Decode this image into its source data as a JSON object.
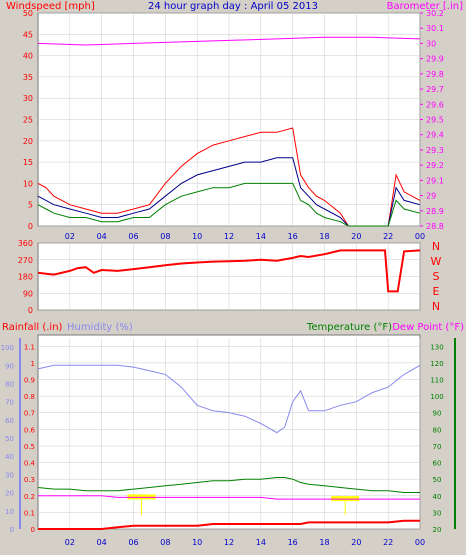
{
  "title": "24 hour graph day : April 05 2013",
  "colors": {
    "background": "#d4d0c8",
    "plot_bg": "#ffffff",
    "gust": "#ff0000",
    "avg_speed": "#00008b",
    "wind_speed": "#008000",
    "barometer": "#ff00ff",
    "direction": "#ff0000",
    "rainfall": "#ff0000",
    "humidity": "#8888ee",
    "temperature": "#008000",
    "dewpoint": "#ff00ff",
    "marker": "#ffff00",
    "title": "#0000cc"
  },
  "x_ticks": [
    "02",
    "04",
    "06",
    "08",
    "10",
    "12",
    "14",
    "16",
    "18",
    "20",
    "22",
    "00"
  ],
  "chart_data": [
    {
      "type": "line",
      "name": "wind-and-barometer",
      "left_label": "Windspeed [mph]",
      "right_label": "Barometer [.in]",
      "left_ticks": [
        "0",
        "5",
        "10",
        "15",
        "20",
        "25",
        "30",
        "35",
        "40",
        "45",
        "50"
      ],
      "right_ticks": [
        "28.8",
        "28.9",
        "29",
        "29.1",
        "29.2",
        "29.3",
        "29.4",
        "29.5",
        "29.6",
        "29.7",
        "29.8",
        "29.9",
        "30",
        "30.1",
        "30.2"
      ],
      "ylim_left": [
        0,
        50
      ],
      "ylim_right": [
        28.8,
        30.2
      ],
      "hours": [
        0,
        0.5,
        1,
        2,
        3,
        4,
        5,
        6,
        7,
        8,
        9,
        10,
        11,
        12,
        13,
        14,
        15,
        16,
        16.5,
        17,
        17.5,
        18,
        19,
        19.5,
        20,
        21,
        21.5,
        22,
        22.5,
        23,
        24
      ],
      "gust": [
        10,
        9,
        7,
        5,
        4,
        3,
        3,
        4,
        5,
        10,
        14,
        17,
        19,
        20,
        21,
        22,
        22,
        23,
        12,
        9,
        7,
        6,
        3,
        0,
        0,
        0,
        0,
        0,
        12,
        8,
        6
      ],
      "avg_speed": [
        7,
        6,
        5,
        4,
        3,
        2,
        2,
        3,
        4,
        7,
        10,
        12,
        13,
        14,
        15,
        15,
        16,
        16,
        9,
        7,
        5,
        4,
        2,
        0,
        0,
        0,
        0,
        0,
        9,
        6,
        5
      ],
      "wind_speed": [
        5,
        4,
        3,
        2,
        2,
        1,
        1,
        2,
        2,
        5,
        7,
        8,
        9,
        9,
        10,
        10,
        10,
        10,
        6,
        5,
        3,
        2,
        1,
        0,
        0,
        0,
        0,
        0,
        6,
        4,
        3
      ],
      "barometer_hours": [
        0,
        3,
        6,
        9,
        12,
        15,
        18,
        21,
        24
      ],
      "barometer": [
        30.0,
        29.99,
        30.0,
        30.01,
        30.02,
        30.03,
        30.04,
        30.04,
        30.03
      ]
    },
    {
      "type": "line",
      "name": "wind-direction",
      "left_ticks": [
        "0",
        "90",
        "180",
        "270",
        "360"
      ],
      "right_ticks": [
        "N",
        "W",
        "S",
        "E",
        "N"
      ],
      "ylim": [
        0,
        360
      ],
      "hours": [
        0,
        0.5,
        1,
        2,
        2.5,
        3,
        3.5,
        4,
        5,
        6,
        7,
        8,
        9,
        10,
        11,
        12,
        13,
        14,
        15,
        16,
        16.5,
        17,
        18,
        19,
        20,
        21,
        21.8,
        22,
        22.6,
        23,
        24
      ],
      "values": [
        200,
        195,
        190,
        210,
        225,
        230,
        200,
        215,
        210,
        220,
        230,
        240,
        250,
        255,
        260,
        262,
        265,
        270,
        265,
        280,
        290,
        285,
        300,
        320,
        320,
        320,
        320,
        100,
        100,
        315,
        320
      ]
    },
    {
      "type": "line",
      "name": "rain-humidity-temperature",
      "left_label": "Rainfall (.in)",
      "left2_label": "Humidity (%)",
      "right_label": "Temperature (°F)",
      "right2_label": "Dew Point (°F)",
      "rain_ticks": [
        "0",
        "0.1",
        "0.2",
        "0.3",
        "0.4",
        "0.5",
        "0.6",
        "0.7",
        "0.8",
        "0.9",
        "1",
        "1.1"
      ],
      "humidity_ticks": [
        "0",
        "10",
        "20",
        "30",
        "40",
        "50",
        "60",
        "70",
        "80",
        "90",
        "100"
      ],
      "temp_ticks": [
        "20",
        "30",
        "40",
        "50",
        "60",
        "70",
        "80",
        "90",
        "100",
        "110",
        "120",
        "130"
      ],
      "ylim_rain": [
        0,
        1.15
      ],
      "ylim_humidity": [
        0,
        105
      ],
      "ylim_temp": [
        20,
        135
      ],
      "hours": [
        0,
        1,
        2,
        3,
        4,
        5,
        6,
        7,
        8,
        9,
        10,
        11,
        12,
        13,
        14,
        15,
        15.5,
        16,
        16.5,
        17,
        18,
        19,
        20,
        21,
        22,
        23,
        24
      ],
      "humidity": [
        88,
        90,
        90,
        90,
        90,
        90,
        89,
        87,
        85,
        78,
        68,
        65,
        64,
        62,
        58,
        53,
        56,
        70,
        76,
        65,
        65,
        68,
        70,
        75,
        78,
        85,
        90
      ],
      "temperature": [
        45,
        44,
        44,
        43,
        43,
        43,
        44,
        45,
        46,
        47,
        48,
        49,
        49,
        50,
        50,
        51,
        51,
        50,
        48,
        47,
        46,
        45,
        44,
        43,
        43,
        42,
        42
      ],
      "dewpoint": [
        40,
        40,
        40,
        40,
        40,
        39,
        39,
        39,
        39,
        39,
        39,
        39,
        39,
        39,
        39,
        38,
        38,
        38,
        38,
        38,
        38,
        38,
        38,
        38,
        38,
        38,
        38
      ],
      "rain": [
        0,
        0,
        0,
        0,
        0,
        0.01,
        0.02,
        0.02,
        0.02,
        0.02,
        0.02,
        0.03,
        0.03,
        0.03,
        0.03,
        0.03,
        0.03,
        0.03,
        0.03,
        0.04,
        0.04,
        0.04,
        0.04,
        0.04,
        0.04,
        0.05,
        0.05
      ],
      "markers": [
        6.5,
        19.3
      ]
    }
  ]
}
